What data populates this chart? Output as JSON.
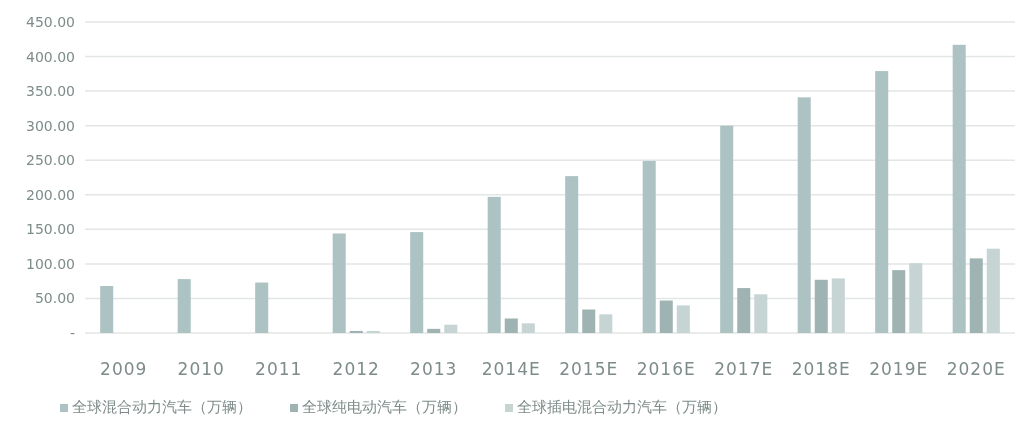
{
  "chart_data": {
    "type": "bar",
    "categories": [
      "2009",
      "2010",
      "2011",
      "2012",
      "2013",
      "2014E",
      "2015E",
      "2016E",
      "2017E",
      "2018E",
      "2019E",
      "2020E"
    ],
    "series": [
      {
        "name": "全球混合动力汽车（万辆）",
        "color": "#adc2c2",
        "values": [
          68,
          78,
          73,
          144,
          146,
          197,
          227,
          249,
          300,
          341,
          379,
          417
        ]
      },
      {
        "name": "全球纯电动汽车（万辆）",
        "color": "#9fb4b2",
        "values": [
          null,
          null,
          null,
          3,
          6,
          21,
          34,
          47,
          65,
          77,
          91,
          108
        ]
      },
      {
        "name": "全球插电混合动力汽车（万辆）",
        "color": "#c6d4d4",
        "values": [
          null,
          null,
          null,
          3,
          12,
          14,
          27,
          40,
          56,
          79,
          101,
          122
        ]
      }
    ],
    "ylim": [
      0,
      450
    ],
    "yticks": [
      {
        "value": 0,
        "label": "-"
      },
      {
        "value": 50,
        "label": "50.00"
      },
      {
        "value": 100,
        "label": "100.00"
      },
      {
        "value": 150,
        "label": "150.00"
      },
      {
        "value": 200,
        "label": "200.00"
      },
      {
        "value": 250,
        "label": "250.00"
      },
      {
        "value": 300,
        "label": "300.00"
      },
      {
        "value": 350,
        "label": "350.00"
      },
      {
        "value": 400,
        "label": "400.00"
      },
      {
        "value": 450,
        "label": "450.00"
      }
    ],
    "grid": "y",
    "legend": "bottom"
  }
}
